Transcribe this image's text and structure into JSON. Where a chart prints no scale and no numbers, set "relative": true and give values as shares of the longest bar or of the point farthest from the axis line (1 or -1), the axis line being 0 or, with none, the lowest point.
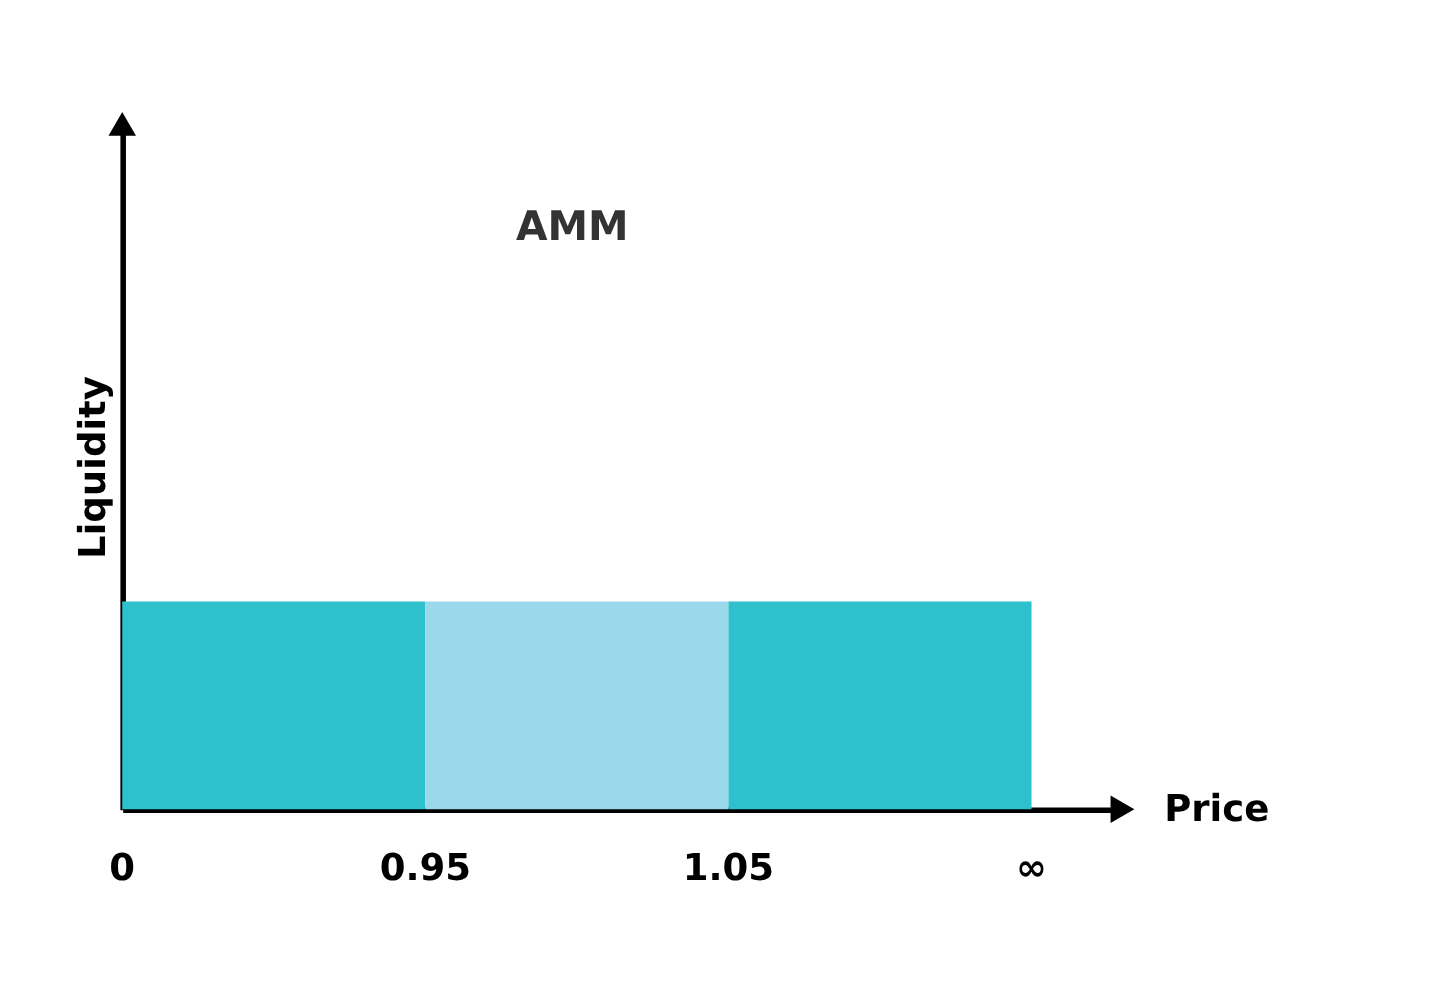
{
  "chart_data": {
    "type": "bar",
    "relative": true,
    "title": "AMM",
    "xlabel": "Price",
    "ylabel": "Liquidity",
    "categories": [
      null,
      null,
      null
    ],
    "values": [
      1,
      1,
      1
    ],
    "colors": [
      "#2ec0cc",
      "#9ad8ea",
      "#2ec0cc"
    ],
    "annotations": [
      "0",
      "0.95",
      "1.05",
      "∞"
    ],
    "grid": false
  }
}
